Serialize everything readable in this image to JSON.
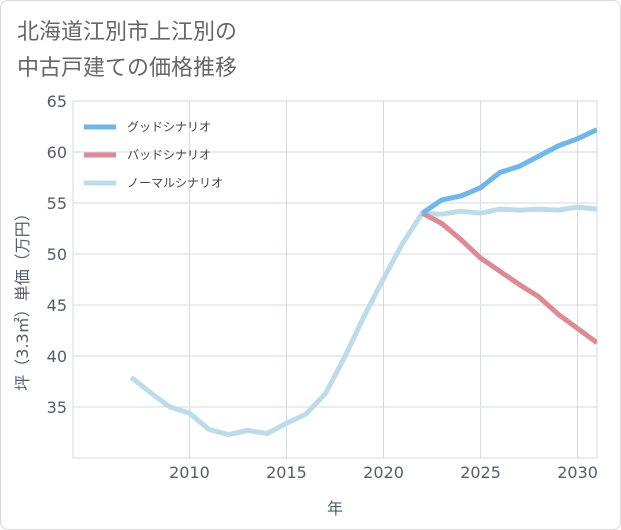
{
  "title": {
    "line1": "北海道江別市上江別の",
    "line2": "中古戸建ての価格推移"
  },
  "chart_data": {
    "type": "line",
    "title": "北海道江別市上江別の中古戸建ての価格推移",
    "xlabel": "年",
    "ylabel": "坪（3.3㎡）単価（万円）",
    "xlim": [
      2004,
      2031
    ],
    "ylim": [
      30,
      65
    ],
    "xticks": [
      2010,
      2015,
      2020,
      2025,
      2030
    ],
    "yticks": [
      35,
      40,
      45,
      50,
      55,
      60,
      65
    ],
    "grid": true,
    "legend_position": "top-left",
    "series": [
      {
        "name": "グッドシナリオ",
        "color": "#6cb8ec",
        "x": [
          2022,
          2023,
          2024,
          2025,
          2026,
          2027,
          2028,
          2029,
          2030,
          2031
        ],
        "values": [
          54.0,
          55.3,
          55.7,
          56.5,
          58.0,
          58.6,
          59.6,
          60.6,
          61.3,
          62.2
        ]
      },
      {
        "name": "バッドシナリオ",
        "color": "#de8a94",
        "x": [
          2022,
          2023,
          2024,
          2025,
          2026,
          2027,
          2028,
          2029,
          2030,
          2031
        ],
        "values": [
          54.0,
          53.0,
          51.4,
          49.6,
          48.3,
          47.0,
          45.8,
          44.1,
          42.7,
          41.3
        ]
      },
      {
        "name": "ノーマルシナリオ",
        "color": "#bcdcec",
        "x": [
          2007,
          2008,
          2009,
          2010,
          2011,
          2012,
          2013,
          2014,
          2015,
          2016,
          2017,
          2018,
          2019,
          2020,
          2021,
          2022,
          2023,
          2024,
          2025,
          2026,
          2027,
          2028,
          2029,
          2030,
          2031
        ],
        "values": [
          37.9,
          36.4,
          35.0,
          34.4,
          32.8,
          32.3,
          32.7,
          32.4,
          33.4,
          34.3,
          36.3,
          39.9,
          43.9,
          47.6,
          51.1,
          54.0,
          53.9,
          54.2,
          54.0,
          54.4,
          54.3,
          54.4,
          54.3,
          54.6,
          54.4
        ]
      }
    ]
  }
}
